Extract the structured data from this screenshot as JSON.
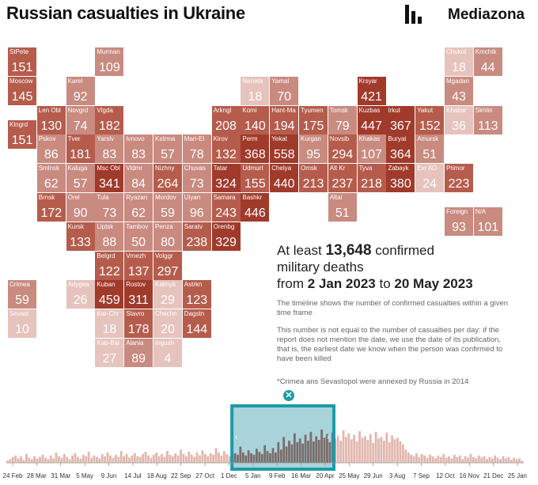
{
  "header": {
    "title": "Russian casualties in Ukraine",
    "brand": "Mediazona"
  },
  "colors": {
    "dark": "#a03a2b",
    "mid": "#b65c4c",
    "light": "#c98a80",
    "pale": "#e6c3bd",
    "accent": "#1d9aa8"
  },
  "chart_data": [
    {
      "type": "heatmap",
      "title": "Russian casualties in Ukraine",
      "cells": [
        {
          "label": "StPete",
          "value": 151,
          "col": 0,
          "row": 0
        },
        {
          "label": "Murman",
          "value": 109,
          "col": 3,
          "row": 0
        },
        {
          "label": "Chukot",
          "value": 18,
          "col": 15,
          "row": 0
        },
        {
          "label": "Kmchtk",
          "value": 44,
          "col": 16,
          "row": 0
        },
        {
          "label": "Moscow",
          "value": 145,
          "col": 0,
          "row": 1
        },
        {
          "label": "Karel",
          "value": 92,
          "col": 2,
          "row": 1
        },
        {
          "label": "Neneta",
          "value": 18,
          "col": 8,
          "row": 1
        },
        {
          "label": "Yamal",
          "value": 70,
          "col": 9,
          "row": 1
        },
        {
          "label": "Krsyar",
          "value": 421,
          "col": 12,
          "row": 1
        },
        {
          "label": "Mgadan",
          "value": 43,
          "col": 15,
          "row": 1
        },
        {
          "label": "Len Obl",
          "value": 130,
          "col": 1,
          "row": 2
        },
        {
          "label": "Novgrd",
          "value": 74,
          "col": 2,
          "row": 2
        },
        {
          "label": "Vlgda",
          "value": 182,
          "col": 3,
          "row": 2
        },
        {
          "label": "Arkngl",
          "value": 208,
          "col": 7,
          "row": 2
        },
        {
          "label": "Komi",
          "value": 140,
          "col": 8,
          "row": 2
        },
        {
          "label": "Hant-Ma",
          "value": 194,
          "col": 9,
          "row": 2
        },
        {
          "label": "Tyumen",
          "value": 175,
          "col": 10,
          "row": 2
        },
        {
          "label": "Tomsk",
          "value": 79,
          "col": 11,
          "row": 2
        },
        {
          "label": "Kuzbas",
          "value": 447,
          "col": 12,
          "row": 2
        },
        {
          "label": "Irkut",
          "value": 367,
          "col": 13,
          "row": 2
        },
        {
          "label": "Yakut",
          "value": 152,
          "col": 14,
          "row": 2
        },
        {
          "label": "Khabar",
          "value": 36,
          "col": 15,
          "row": 2
        },
        {
          "label": "Skhlin",
          "value": 113,
          "col": 16,
          "row": 2
        },
        {
          "label": "Klngrd",
          "value": 151,
          "col": 0,
          "row": 2.5
        },
        {
          "label": "Pskov",
          "value": 86,
          "col": 1,
          "row": 3
        },
        {
          "label": "Tver",
          "value": 181,
          "col": 2,
          "row": 3
        },
        {
          "label": "Yarslv",
          "value": 83,
          "col": 3,
          "row": 3
        },
        {
          "label": "Ivnovo",
          "value": 83,
          "col": 4,
          "row": 3
        },
        {
          "label": "Kstrma",
          "value": 57,
          "col": 5,
          "row": 3
        },
        {
          "label": "Mari-El",
          "value": 78,
          "col": 6,
          "row": 3
        },
        {
          "label": "Kirov",
          "value": 132,
          "col": 7,
          "row": 3
        },
        {
          "label": "Perm",
          "value": 368,
          "col": 8,
          "row": 3
        },
        {
          "label": "Yekat",
          "value": 558,
          "col": 9,
          "row": 3
        },
        {
          "label": "Kurgan",
          "value": 95,
          "col": 10,
          "row": 3
        },
        {
          "label": "Novsib",
          "value": 294,
          "col": 11,
          "row": 3
        },
        {
          "label": "Khakas",
          "value": 107,
          "col": 12,
          "row": 3
        },
        {
          "label": "Buryat",
          "value": 364,
          "col": 13,
          "row": 3
        },
        {
          "label": "Amursk",
          "value": 51,
          "col": 14,
          "row": 3
        },
        {
          "label": "Smlnsk",
          "value": 62,
          "col": 1,
          "row": 4
        },
        {
          "label": "Kaluga",
          "value": 57,
          "col": 2,
          "row": 4
        },
        {
          "label": "Msc Obl",
          "value": 341,
          "col": 3,
          "row": 4
        },
        {
          "label": "Vldmr",
          "value": 84,
          "col": 4,
          "row": 4
        },
        {
          "label": "Nizhny",
          "value": 264,
          "col": 5,
          "row": 4
        },
        {
          "label": "Chuvas",
          "value": 73,
          "col": 6,
          "row": 4
        },
        {
          "label": "Tatar",
          "value": 324,
          "col": 7,
          "row": 4
        },
        {
          "label": "Udmurt",
          "value": 155,
          "col": 8,
          "row": 4
        },
        {
          "label": "Chelya",
          "value": 440,
          "col": 9,
          "row": 4
        },
        {
          "label": "Omsk",
          "value": 213,
          "col": 10,
          "row": 4
        },
        {
          "label": "Alt Kr",
          "value": 237,
          "col": 11,
          "row": 4
        },
        {
          "label": "Tyva",
          "value": 218,
          "col": 12,
          "row": 4
        },
        {
          "label": "Zabayk",
          "value": 380,
          "col": 13,
          "row": 4
        },
        {
          "label": "Evr AO",
          "value": 24,
          "col": 14,
          "row": 4
        },
        {
          "label": "Primor",
          "value": 223,
          "col": 15,
          "row": 4
        },
        {
          "label": "Brnsk",
          "value": 172,
          "col": 1,
          "row": 5
        },
        {
          "label": "Orel",
          "value": 90,
          "col": 2,
          "row": 5
        },
        {
          "label": "Tula",
          "value": 73,
          "col": 3,
          "row": 5
        },
        {
          "label": "Ryazan",
          "value": 62,
          "col": 4,
          "row": 5
        },
        {
          "label": "Mordov",
          "value": 59,
          "col": 5,
          "row": 5
        },
        {
          "label": "Ulyan",
          "value": 96,
          "col": 6,
          "row": 5
        },
        {
          "label": "Samara",
          "value": 243,
          "col": 7,
          "row": 5
        },
        {
          "label": "Bashkr",
          "value": 446,
          "col": 8,
          "row": 5
        },
        {
          "label": "Altai",
          "value": 51,
          "col": 11,
          "row": 5
        },
        {
          "label": "Foreign",
          "value": 93,
          "col": 15,
          "row": 5.5
        },
        {
          "label": "N/A",
          "value": 101,
          "col": 16,
          "row": 5.5
        },
        {
          "label": "Kursk",
          "value": 133,
          "col": 2,
          "row": 6
        },
        {
          "label": "Liptsk",
          "value": 88,
          "col": 3,
          "row": 6
        },
        {
          "label": "Tambov",
          "value": 50,
          "col": 4,
          "row": 6
        },
        {
          "label": "Penza",
          "value": 80,
          "col": 5,
          "row": 6
        },
        {
          "label": "Saratv",
          "value": 238,
          "col": 6,
          "row": 6
        },
        {
          "label": "Orenbg",
          "value": 329,
          "col": 7,
          "row": 6
        },
        {
          "label": "Belgrd",
          "value": 122,
          "col": 3,
          "row": 7
        },
        {
          "label": "Vrnezh",
          "value": 137,
          "col": 4,
          "row": 7
        },
        {
          "label": "Volggr",
          "value": 297,
          "col": 5,
          "row": 7
        },
        {
          "label": "Crimea",
          "value": 59,
          "col": 0,
          "row": 8
        },
        {
          "label": "Adygea",
          "value": 26,
          "col": 2,
          "row": 8
        },
        {
          "label": "Kuban",
          "value": 459,
          "col": 3,
          "row": 8
        },
        {
          "label": "Rostov",
          "value": 311,
          "col": 4,
          "row": 8
        },
        {
          "label": "Kalmyk",
          "value": 29,
          "col": 5,
          "row": 8
        },
        {
          "label": "Astrkn",
          "value": 123,
          "col": 6,
          "row": 8
        },
        {
          "label": "Sevast",
          "value": 10,
          "col": 0,
          "row": 9
        },
        {
          "label": "Kar-Chr",
          "value": 18,
          "col": 3,
          "row": 9
        },
        {
          "label": "Stavro",
          "value": 178,
          "col": 4,
          "row": 9
        },
        {
          "label": "Chechn",
          "value": 20,
          "col": 5,
          "row": 9
        },
        {
          "label": "Dagstn",
          "value": 144,
          "col": 6,
          "row": 9
        },
        {
          "label": "Kab-Bal",
          "value": 27,
          "col": 3,
          "row": 10
        },
        {
          "label": "Alania",
          "value": 89,
          "col": 4,
          "row": 10
        },
        {
          "label": "Ingush",
          "value": 4,
          "col": 5,
          "row": 10
        }
      ]
    },
    {
      "type": "bar",
      "title": "",
      "x_tick_labels": [
        "24 Feb",
        "28 Mar",
        "31 Mar",
        "5 May",
        "9 Jun",
        "14 Jul",
        "18 Aug",
        "22 Sep",
        "27 Oct",
        "1 Dec",
        "5 Jan",
        "9 Feb",
        "16 Mar",
        "20 Apr",
        "25 May",
        "29 Jun",
        "3 Aug",
        "7 Sep",
        "12 Oct",
        "16 Nov",
        "21 Dec",
        "25 Jan"
      ],
      "selection": {
        "start": "2 Jan 2023",
        "end": "20 May 2023"
      },
      "selection_fraction": {
        "start": 0.436,
        "end": 0.633
      },
      "values": [
        3,
        5,
        8,
        10,
        6,
        9,
        4,
        12,
        7,
        5,
        9,
        6,
        8,
        11,
        7,
        5,
        10,
        6,
        14,
        9,
        7,
        12,
        8,
        5,
        10,
        13,
        8,
        6,
        11,
        9,
        15,
        7,
        10,
        8,
        6,
        12,
        9,
        14,
        10,
        7,
        11,
        8,
        16,
        9,
        12,
        7,
        10,
        13,
        9,
        8,
        12,
        15,
        10,
        7,
        11,
        14,
        9,
        12,
        8,
        16,
        11,
        9,
        13,
        10,
        18,
        12,
        9,
        15,
        11,
        8,
        14,
        10,
        17,
        12,
        9,
        13,
        11,
        20,
        14,
        10,
        16,
        12,
        9,
        15,
        13,
        11,
        22,
        14,
        10,
        17,
        13,
        11,
        19,
        15,
        12,
        24,
        16,
        13,
        20,
        14,
        28,
        18,
        35,
        22,
        30,
        25,
        40,
        28,
        33,
        26,
        38,
        30,
        42,
        29,
        36,
        31,
        45,
        34,
        39,
        28,
        41,
        33,
        37,
        30,
        44,
        35,
        40,
        32,
        38,
        29,
        43,
        34,
        36,
        31,
        39,
        27,
        42,
        33,
        35,
        30,
        41,
        28,
        37,
        32,
        34,
        29,
        25,
        18,
        14,
        11,
        9,
        13,
        8,
        12,
        10,
        7,
        11,
        9,
        6,
        10,
        8,
        12,
        7,
        9,
        6,
        11,
        8,
        10,
        5,
        9,
        7,
        12,
        8,
        6,
        10,
        7,
        9,
        5,
        8,
        6,
        10,
        7,
        5,
        9,
        6,
        8,
        4,
        7,
        5,
        6,
        3
      ]
    }
  ],
  "summary": {
    "prefix": "At least",
    "count": "13,648",
    "suffix": "confirmed",
    "line2": "military deaths",
    "from_word": "from",
    "start_date": "2 Jan 2023",
    "to_word": "to",
    "end_date": "20 May 2023"
  },
  "notes": {
    "timeline": "The timeline shows the number of confirmed casualties within a given time frame",
    "per_day": "This number is not equal to the number of casualties per day: if the report does not mention the date, we use the date of its publication, that is, the earliest date we know when the person was confirmed to have been killed",
    "annexed": "*Crimea ans Sevastopol were annexed by Russia in 2014"
  },
  "timeline": {
    "close_icon": "close-icon"
  }
}
